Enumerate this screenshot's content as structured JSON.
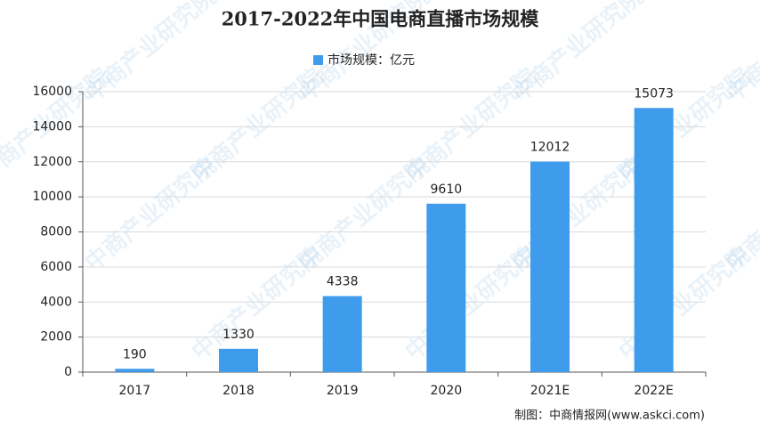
{
  "chart_data": {
    "type": "bar",
    "title": "2017-2022年中国电商直播市场规模",
    "categories": [
      "2017",
      "2018",
      "2019",
      "2020",
      "2021E",
      "2022E"
    ],
    "series": [
      {
        "name": "市场规模：亿元",
        "color": "#3f9bec",
        "values": [
          190,
          1330,
          4338,
          9610,
          12012,
          15073
        ]
      }
    ],
    "ylim": [
      0,
      16000
    ],
    "yticks": [
      0,
      2000,
      4000,
      6000,
      8000,
      10000,
      12000,
      14000,
      16000
    ],
    "grid": true,
    "legend": "top",
    "source": "制图：中商情报网(www.askci.com)",
    "watermark": "中商产业研究院"
  }
}
